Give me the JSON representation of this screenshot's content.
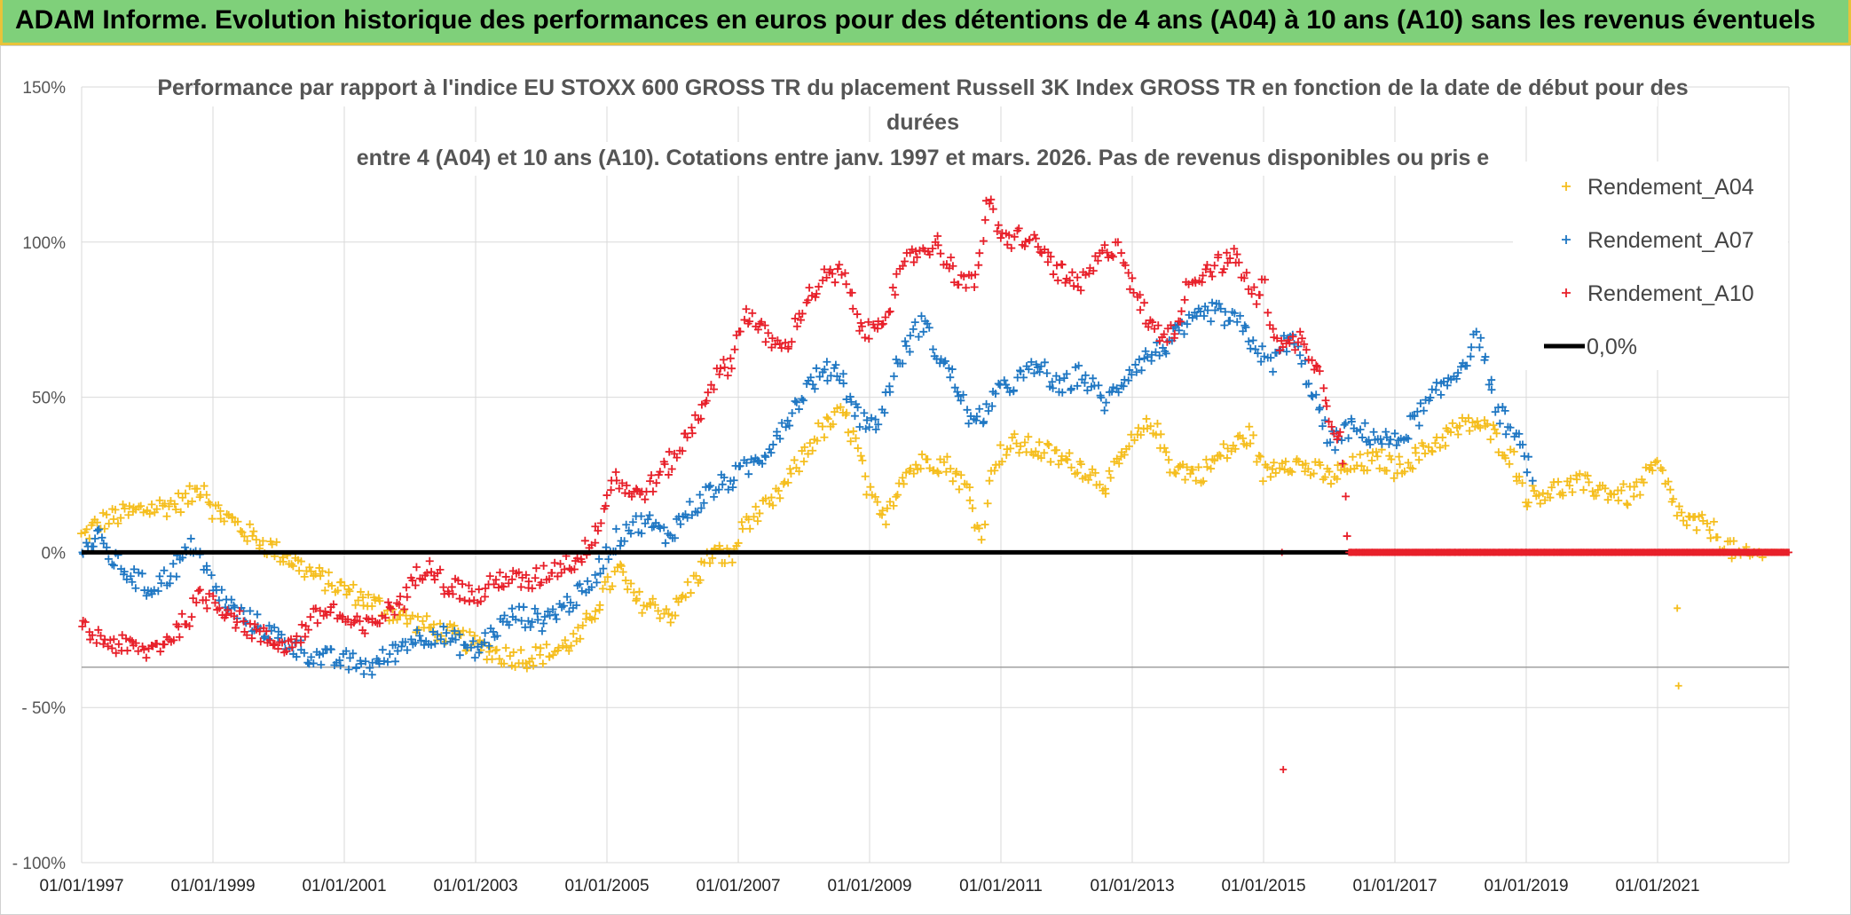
{
  "banner": {
    "title": "ADAM Informe. Evolution historique des performances en euros pour des détentions de 4 ans (A04) à 10 ans (A10) sans les revenus éventuels"
  },
  "chart_data": {
    "type": "scatter",
    "title_lines": [
      "Performance par rapport à l'indice EU STOXX 600 GROSS TR  du placement Russell 3K Index GROSS TR en fonction de la date de début pour des",
      "durées",
      "entre 4 (A04) et 10 ans (A10). Cotations entre janv. 1997 et mars. 2026. Pas de revenus disponibles ou pris e"
    ],
    "xlabel": "",
    "ylabel": "",
    "x_range": [
      1997.0,
      2023.0
    ],
    "ylim": [
      -100,
      150
    ],
    "y_ticks": [
      {
        "value": 150,
        "label": "150%"
      },
      {
        "value": 100,
        "label": "100%"
      },
      {
        "value": 50,
        "label": "50%"
      },
      {
        "value": 0,
        "label": "0%"
      },
      {
        "value": -50,
        "label": "- 50%"
      },
      {
        "value": -100,
        "label": "- 100%"
      }
    ],
    "x_ticks": [
      {
        "value": 1997,
        "label": "01/01/1997"
      },
      {
        "value": 1999,
        "label": "01/01/1999"
      },
      {
        "value": 2001,
        "label": "01/01/2001"
      },
      {
        "value": 2003,
        "label": "01/01/2003"
      },
      {
        "value": 2005,
        "label": "01/01/2005"
      },
      {
        "value": 2007,
        "label": "01/01/2007"
      },
      {
        "value": 2009,
        "label": "01/01/2009"
      },
      {
        "value": 2011,
        "label": "01/01/2011"
      },
      {
        "value": 2013,
        "label": "01/01/2013"
      },
      {
        "value": 2015,
        "label": "01/01/2015"
      },
      {
        "value": 2017,
        "label": "01/01/2017"
      },
      {
        "value": 2019,
        "label": "01/01/2019"
      },
      {
        "value": 2021,
        "label": "01/01/2021"
      }
    ],
    "grid": true,
    "legend_position": "top-right",
    "series": [
      {
        "name": "Rendement_A04",
        "color": "#f5be1e",
        "marker": "plus",
        "points": [
          [
            1997.0,
            5
          ],
          [
            1997.3,
            10
          ],
          [
            1997.6,
            12
          ],
          [
            1998.0,
            14
          ],
          [
            1998.3,
            15
          ],
          [
            1998.6,
            17
          ],
          [
            1998.85,
            22
          ],
          [
            1999.0,
            14
          ],
          [
            1999.3,
            10
          ],
          [
            1999.6,
            5
          ],
          [
            2000.0,
            0
          ],
          [
            2000.3,
            -4
          ],
          [
            2000.6,
            -8
          ],
          [
            2001.0,
            -12
          ],
          [
            2001.3,
            -15
          ],
          [
            2001.6,
            -18
          ],
          [
            2002.0,
            -22
          ],
          [
            2002.4,
            -25
          ],
          [
            2002.8,
            -28
          ],
          [
            2003.0,
            -30
          ],
          [
            2003.4,
            -33
          ],
          [
            2003.8,
            -34
          ],
          [
            2004.2,
            -32
          ],
          [
            2004.6,
            -27
          ],
          [
            2004.9,
            -15
          ],
          [
            2005.2,
            -5
          ],
          [
            2005.4,
            -15
          ],
          [
            2005.8,
            -18
          ],
          [
            2006.0,
            -20
          ],
          [
            2006.3,
            -10
          ],
          [
            2006.6,
            0
          ],
          [
            2006.9,
            -2
          ],
          [
            2007.1,
            10
          ],
          [
            2007.5,
            15
          ],
          [
            2007.9,
            28
          ],
          [
            2008.2,
            38
          ],
          [
            2008.6,
            45
          ],
          [
            2008.8,
            35
          ],
          [
            2009.0,
            18
          ],
          [
            2009.2,
            10
          ],
          [
            2009.5,
            25
          ],
          [
            2009.9,
            30
          ],
          [
            2010.2,
            28
          ],
          [
            2010.5,
            20
          ],
          [
            2010.7,
            5
          ],
          [
            2010.9,
            30
          ],
          [
            2011.2,
            35
          ],
          [
            2011.6,
            33
          ],
          [
            2011.9,
            30
          ],
          [
            2012.2,
            28
          ],
          [
            2012.6,
            22
          ],
          [
            2013.0,
            35
          ],
          [
            2013.3,
            42
          ],
          [
            2013.6,
            28
          ],
          [
            2014.0,
            25
          ],
          [
            2014.4,
            32
          ],
          [
            2014.8,
            38
          ],
          [
            2015.0,
            25
          ],
          [
            2015.3,
            30
          ],
          [
            2015.7,
            27
          ],
          [
            2016.0,
            24
          ],
          [
            2016.4,
            28
          ],
          [
            2016.8,
            30
          ],
          [
            2017.0,
            27
          ],
          [
            2017.4,
            32
          ],
          [
            2017.8,
            38
          ],
          [
            2018.2,
            42
          ],
          [
            2018.5,
            38
          ],
          [
            2018.8,
            30
          ],
          [
            2019.0,
            18
          ],
          [
            2019.4,
            20
          ],
          [
            2019.8,
            22
          ],
          [
            2020.2,
            20
          ],
          [
            2020.6,
            18
          ],
          [
            2021.0,
            28
          ],
          [
            2021.2,
            18
          ],
          [
            2021.4,
            10
          ],
          [
            2021.8,
            8
          ],
          [
            2022.0,
            3
          ],
          [
            2022.3,
            -2
          ],
          [
            2022.6,
            0
          ],
          [
            2023.0,
            0
          ]
        ],
        "outliers": [
          [
            2021.3,
            -18
          ],
          [
            2021.32,
            -43
          ]
        ]
      },
      {
        "name": "Rendement_A07",
        "color": "#1f77c3",
        "marker": "plus",
        "points": [
          [
            1997.0,
            0
          ],
          [
            1997.25,
            5
          ],
          [
            1997.5,
            -3
          ],
          [
            1997.8,
            -8
          ],
          [
            1998.0,
            -12
          ],
          [
            1998.3,
            -8
          ],
          [
            1998.5,
            -3
          ],
          [
            1998.75,
            3
          ],
          [
            1999.0,
            -12
          ],
          [
            1999.4,
            -20
          ],
          [
            1999.8,
            -25
          ],
          [
            2000.2,
            -30
          ],
          [
            2000.6,
            -34
          ],
          [
            2001.0,
            -35
          ],
          [
            2001.4,
            -37
          ],
          [
            2001.7,
            -33
          ],
          [
            2002.0,
            -28
          ],
          [
            2002.4,
            -26
          ],
          [
            2002.8,
            -30
          ],
          [
            2003.0,
            -32
          ],
          [
            2003.3,
            -25
          ],
          [
            2003.6,
            -20
          ],
          [
            2004.0,
            -22
          ],
          [
            2004.3,
            -18
          ],
          [
            2004.7,
            -12
          ],
          [
            2005.0,
            0
          ],
          [
            2005.3,
            8
          ],
          [
            2005.6,
            10
          ],
          [
            2005.9,
            5
          ],
          [
            2006.2,
            12
          ],
          [
            2006.6,
            20
          ],
          [
            2007.0,
            25
          ],
          [
            2007.4,
            32
          ],
          [
            2007.8,
            45
          ],
          [
            2008.1,
            55
          ],
          [
            2008.5,
            60
          ],
          [
            2008.8,
            45
          ],
          [
            2009.1,
            40
          ],
          [
            2009.4,
            60
          ],
          [
            2009.8,
            75
          ],
          [
            2010.0,
            65
          ],
          [
            2010.3,
            55
          ],
          [
            2010.6,
            40
          ],
          [
            2010.9,
            50
          ],
          [
            2011.2,
            55
          ],
          [
            2011.6,
            60
          ],
          [
            2011.9,
            52
          ],
          [
            2012.2,
            58
          ],
          [
            2012.6,
            48
          ],
          [
            2013.0,
            60
          ],
          [
            2013.4,
            65
          ],
          [
            2013.8,
            72
          ],
          [
            2014.2,
            78
          ],
          [
            2014.6,
            74
          ],
          [
            2014.9,
            66
          ],
          [
            2015.1,
            60
          ],
          [
            2015.4,
            70
          ],
          [
            2015.7,
            55
          ],
          [
            2016.0,
            35
          ],
          [
            2016.3,
            40
          ],
          [
            2016.6,
            38
          ],
          [
            2017.0,
            35
          ],
          [
            2017.4,
            45
          ],
          [
            2017.8,
            55
          ],
          [
            2018.0,
            60
          ],
          [
            2018.3,
            70
          ],
          [
            2018.5,
            48
          ],
          [
            2018.8,
            38
          ],
          [
            2019.0,
            30
          ],
          [
            2019.1,
            25
          ]
        ]
      },
      {
        "name": "Rendement_A10",
        "color": "#e8202a",
        "marker": "plus",
        "points": [
          [
            1997.0,
            -25
          ],
          [
            1997.3,
            -28
          ],
          [
            1997.6,
            -30
          ],
          [
            1998.0,
            -32
          ],
          [
            1998.3,
            -28
          ],
          [
            1998.6,
            -22
          ],
          [
            1998.8,
            -15
          ],
          [
            1999.0,
            -15
          ],
          [
            1999.4,
            -22
          ],
          [
            1999.8,
            -28
          ],
          [
            2000.2,
            -30
          ],
          [
            2000.5,
            -22
          ],
          [
            2000.8,
            -18
          ],
          [
            2001.0,
            -22
          ],
          [
            2001.3,
            -25
          ],
          [
            2001.6,
            -20
          ],
          [
            2001.9,
            -15
          ],
          [
            2002.1,
            -8
          ],
          [
            2002.3,
            -2
          ],
          [
            2002.5,
            -10
          ],
          [
            2002.8,
            -12
          ],
          [
            2003.0,
            -15
          ],
          [
            2003.4,
            -8
          ],
          [
            2003.8,
            -10
          ],
          [
            2004.2,
            -5
          ],
          [
            2004.6,
            -2
          ],
          [
            2004.9,
            10
          ],
          [
            2005.1,
            25
          ],
          [
            2005.4,
            18
          ],
          [
            2005.7,
            22
          ],
          [
            2006.0,
            30
          ],
          [
            2006.3,
            40
          ],
          [
            2006.6,
            55
          ],
          [
            2006.9,
            62
          ],
          [
            2007.1,
            78
          ],
          [
            2007.4,
            70
          ],
          [
            2007.7,
            65
          ],
          [
            2008.0,
            80
          ],
          [
            2008.3,
            88
          ],
          [
            2008.6,
            90
          ],
          [
            2008.8,
            75
          ],
          [
            2009.0,
            70
          ],
          [
            2009.3,
            80
          ],
          [
            2009.6,
            95
          ],
          [
            2010.0,
            100
          ],
          [
            2010.3,
            90
          ],
          [
            2010.6,
            85
          ],
          [
            2010.8,
            115
          ],
          [
            2011.0,
            100
          ],
          [
            2011.3,
            102
          ],
          [
            2011.6,
            98
          ],
          [
            2011.9,
            90
          ],
          [
            2012.2,
            85
          ],
          [
            2012.5,
            95
          ],
          [
            2012.8,
            100
          ],
          [
            2013.0,
            85
          ],
          [
            2013.3,
            72
          ],
          [
            2013.6,
            70
          ],
          [
            2013.9,
            88
          ],
          [
            2014.2,
            92
          ],
          [
            2014.6,
            95
          ],
          [
            2014.9,
            80
          ],
          [
            2015.0,
            88
          ],
          [
            2015.1,
            75
          ],
          [
            2015.3,
            65
          ],
          [
            2015.6,
            70
          ],
          [
            2015.9,
            55
          ],
          [
            2016.0,
            45
          ],
          [
            2016.2,
            35
          ],
          [
            2016.3,
            0
          ],
          [
            2023.0,
            0
          ]
        ],
        "outliers": [
          [
            2015.3,
            -70
          ],
          [
            2015.28,
            0
          ]
        ]
      },
      {
        "name": "0,0%",
        "color": "#000000",
        "marker": "line",
        "points": [
          [
            1997.0,
            0
          ],
          [
            2023.0,
            0
          ]
        ]
      }
    ]
  }
}
